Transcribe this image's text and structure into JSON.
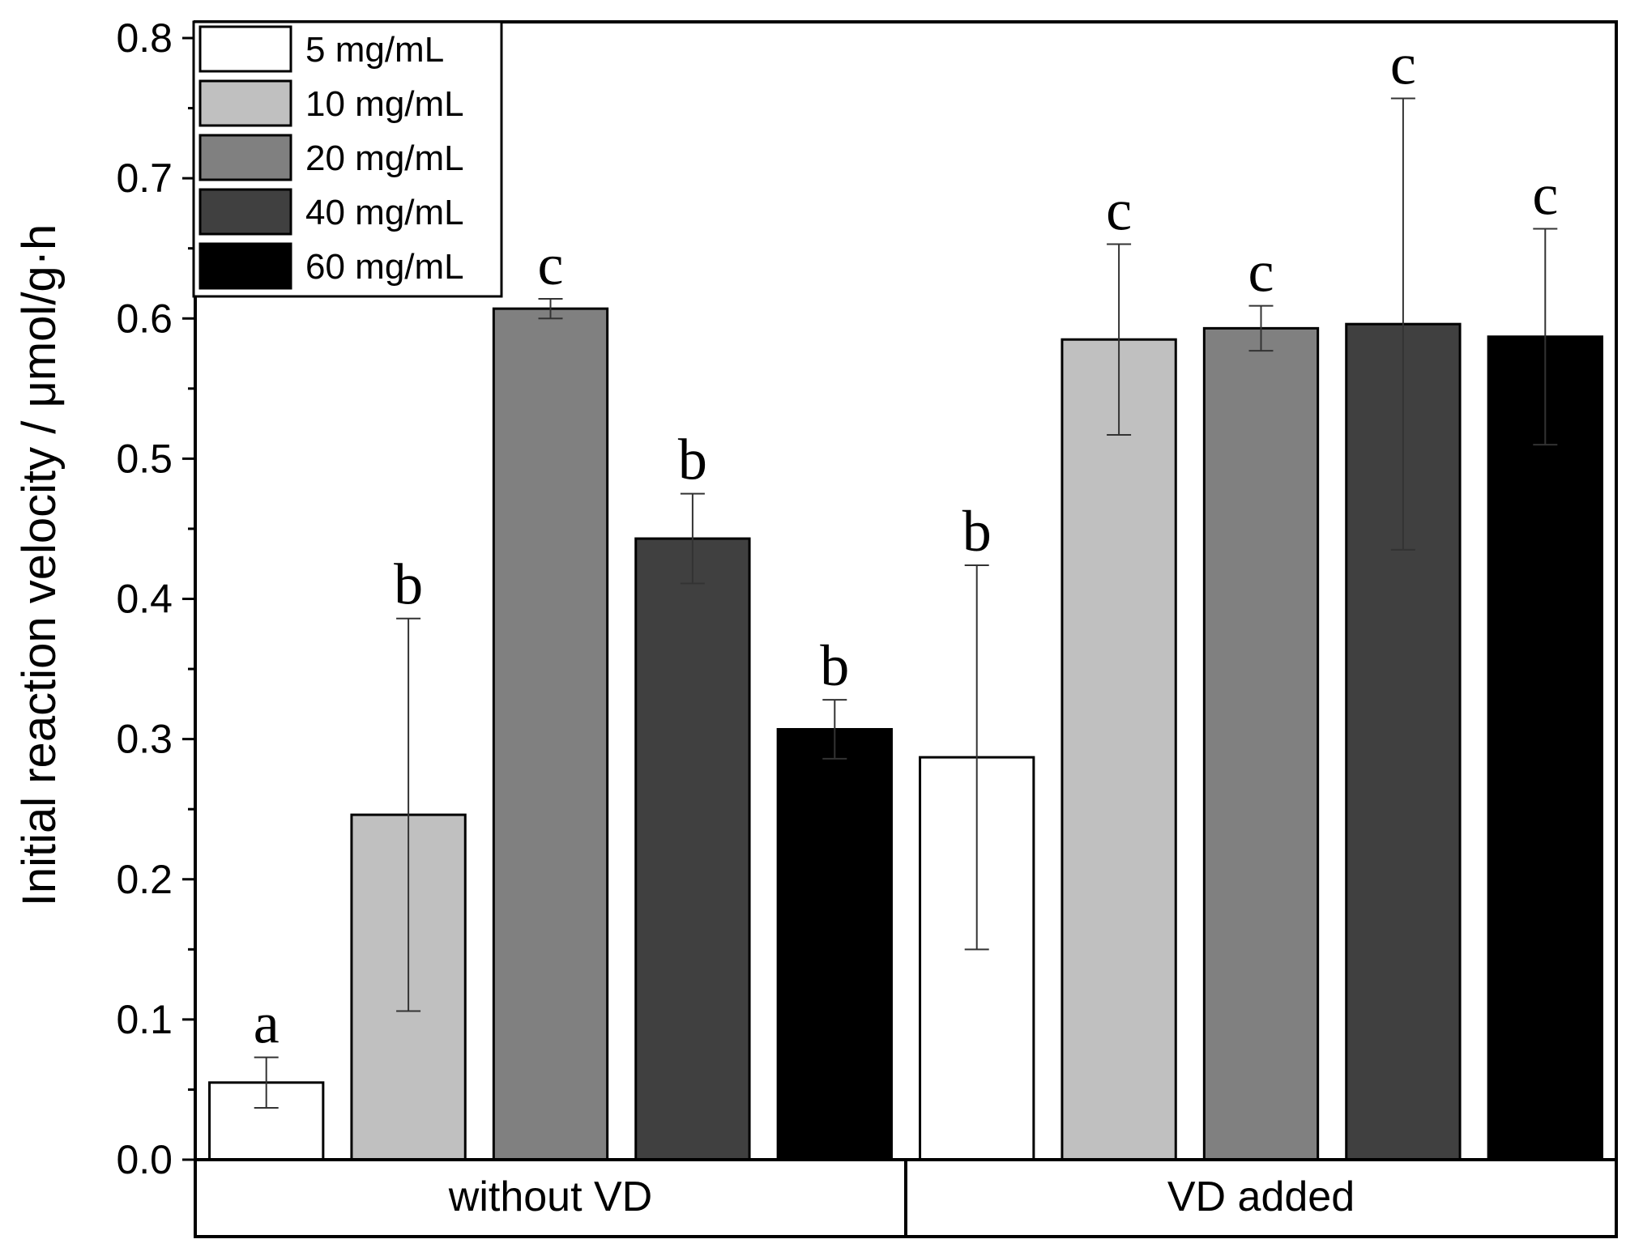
{
  "chart_data": {
    "type": "bar",
    "title": "",
    "xlabel": "",
    "ylabel": "Initial reaction velocity / μmol/g·h",
    "ylim": [
      0,
      0.8
    ],
    "yticks": [
      0.0,
      0.1,
      0.2,
      0.3,
      0.4,
      0.5,
      0.6,
      0.7,
      0.8
    ],
    "ytick_labels": [
      "0.0",
      "0.1",
      "0.2",
      "0.3",
      "0.4",
      "0.5",
      "0.6",
      "0.7",
      "0.8"
    ],
    "categories": [
      "without VD",
      "VD added"
    ],
    "legend_position": "top-left",
    "series": [
      {
        "name": "5 mg/mL",
        "color": "#ffffff",
        "values": [
          0.055,
          0.287
        ],
        "errors": [
          0.018,
          0.137
        ],
        "labels": [
          "a",
          "b"
        ]
      },
      {
        "name": "10 mg/mL",
        "color": "#c0c0c0",
        "values": [
          0.246,
          0.585
        ],
        "errors": [
          0.14,
          0.068
        ],
        "labels": [
          "b",
          "c"
        ]
      },
      {
        "name": "20 mg/mL",
        "color": "#808080",
        "values": [
          0.607,
          0.593
        ],
        "errors": [
          0.007,
          0.016
        ],
        "labels": [
          "c",
          "c"
        ]
      },
      {
        "name": "40 mg/mL",
        "color": "#404040",
        "values": [
          0.443,
          0.596
        ],
        "errors": [
          0.032,
          0.161
        ],
        "labels": [
          "b",
          "c"
        ]
      },
      {
        "name": "60 mg/mL",
        "color": "#000000",
        "values": [
          0.307,
          0.587
        ],
        "errors": [
          0.021,
          0.077
        ],
        "labels": [
          "b",
          "c"
        ]
      }
    ]
  }
}
